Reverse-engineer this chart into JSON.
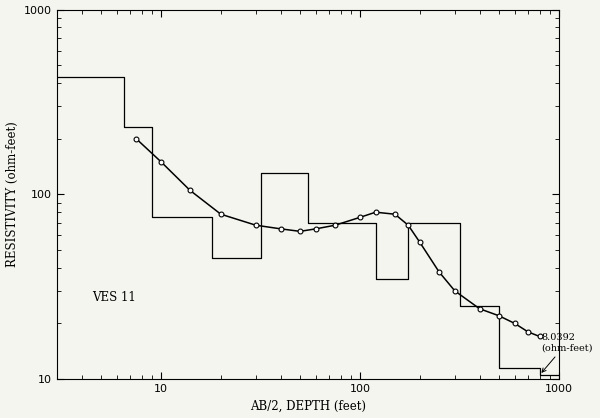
{
  "title": "",
  "xlabel": "AB/2, DEPTH (feet)",
  "ylabel": "RESISTIVITY (ohm-feet)",
  "xlim": [
    3,
    1000
  ],
  "ylim": [
    10,
    1000
  ],
  "label_text": "VES 11",
  "annotation_line1": "8.0392",
  "annotation_line2": "(ohm-feet)",
  "background_color": "#f5f5f0",
  "curve_color": "#000000",
  "step_color": "#000000",
  "curve_x": [
    7.5,
    10.0,
    14.0,
    20.0,
    30.0,
    40.0,
    50.0,
    60.0,
    75.0,
    100.0,
    120.0,
    150.0,
    175.0,
    200.0,
    250.0,
    300.0,
    400.0,
    500.0,
    600.0,
    700.0,
    800.0
  ],
  "curve_y": [
    200.0,
    150.0,
    105.0,
    78.0,
    68.0,
    65.0,
    63.0,
    65.0,
    68.0,
    75.0,
    80.0,
    78.0,
    68.0,
    55.0,
    38.0,
    30.0,
    24.0,
    22.0,
    20.0,
    18.0,
    17.0
  ],
  "step_x": [
    3.0,
    6.5,
    6.5,
    9.0,
    9.0,
    18.0,
    18.0,
    32.0,
    32.0,
    55.0,
    55.0,
    120.0,
    120.0,
    175.0,
    175.0,
    320.0,
    320.0,
    500.0,
    500.0,
    800.0,
    800.0,
    1000.0
  ],
  "step_y": [
    430.0,
    430.0,
    230.0,
    230.0,
    75.0,
    75.0,
    45.0,
    45.0,
    130.0,
    130.0,
    70.0,
    70.0,
    35.0,
    35.0,
    70.0,
    70.0,
    25.0,
    25.0,
    11.5,
    11.5,
    10.5,
    10.5
  ]
}
